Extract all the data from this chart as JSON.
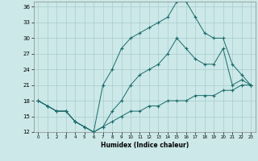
{
  "xlabel": "Humidex (Indice chaleur)",
  "ylabel": "",
  "bg_color": "#cce8e8",
  "grid_color": "#aacccc",
  "line_color": "#1a6b6b",
  "xlim": [
    -0.5,
    23.5
  ],
  "ylim": [
    12,
    37
  ],
  "yticks": [
    12,
    15,
    18,
    21,
    24,
    27,
    30,
    33,
    36
  ],
  "xticks": [
    0,
    1,
    2,
    3,
    4,
    5,
    6,
    7,
    8,
    9,
    10,
    11,
    12,
    13,
    14,
    15,
    16,
    17,
    18,
    19,
    20,
    21,
    22,
    23
  ],
  "line1_x": [
    0,
    1,
    2,
    3,
    4,
    5,
    6,
    7,
    8,
    9,
    10,
    11,
    12,
    13,
    14,
    15,
    16,
    17,
    18,
    19,
    20,
    21,
    22,
    23
  ],
  "line1_y": [
    18,
    17,
    16,
    16,
    14,
    13,
    12,
    21,
    24,
    28,
    30,
    31,
    32,
    33,
    34,
    37,
    37,
    34,
    31,
    30,
    30,
    25,
    23,
    21
  ],
  "line2_x": [
    0,
    1,
    2,
    3,
    4,
    5,
    6,
    7,
    8,
    9,
    10,
    11,
    12,
    13,
    14,
    15,
    16,
    17,
    18,
    19,
    20,
    21,
    22,
    23
  ],
  "line2_y": [
    18,
    17,
    16,
    16,
    14,
    13,
    12,
    13,
    16,
    18,
    21,
    23,
    24,
    25,
    27,
    30,
    28,
    26,
    25,
    25,
    28,
    21,
    22,
    21
  ],
  "line3_x": [
    0,
    1,
    2,
    3,
    4,
    5,
    6,
    7,
    8,
    9,
    10,
    11,
    12,
    13,
    14,
    15,
    16,
    17,
    18,
    19,
    20,
    21,
    22,
    23
  ],
  "line3_y": [
    18,
    17,
    16,
    16,
    14,
    13,
    12,
    13,
    14,
    15,
    16,
    16,
    17,
    17,
    18,
    18,
    18,
    19,
    19,
    19,
    20,
    20,
    21,
    21
  ]
}
